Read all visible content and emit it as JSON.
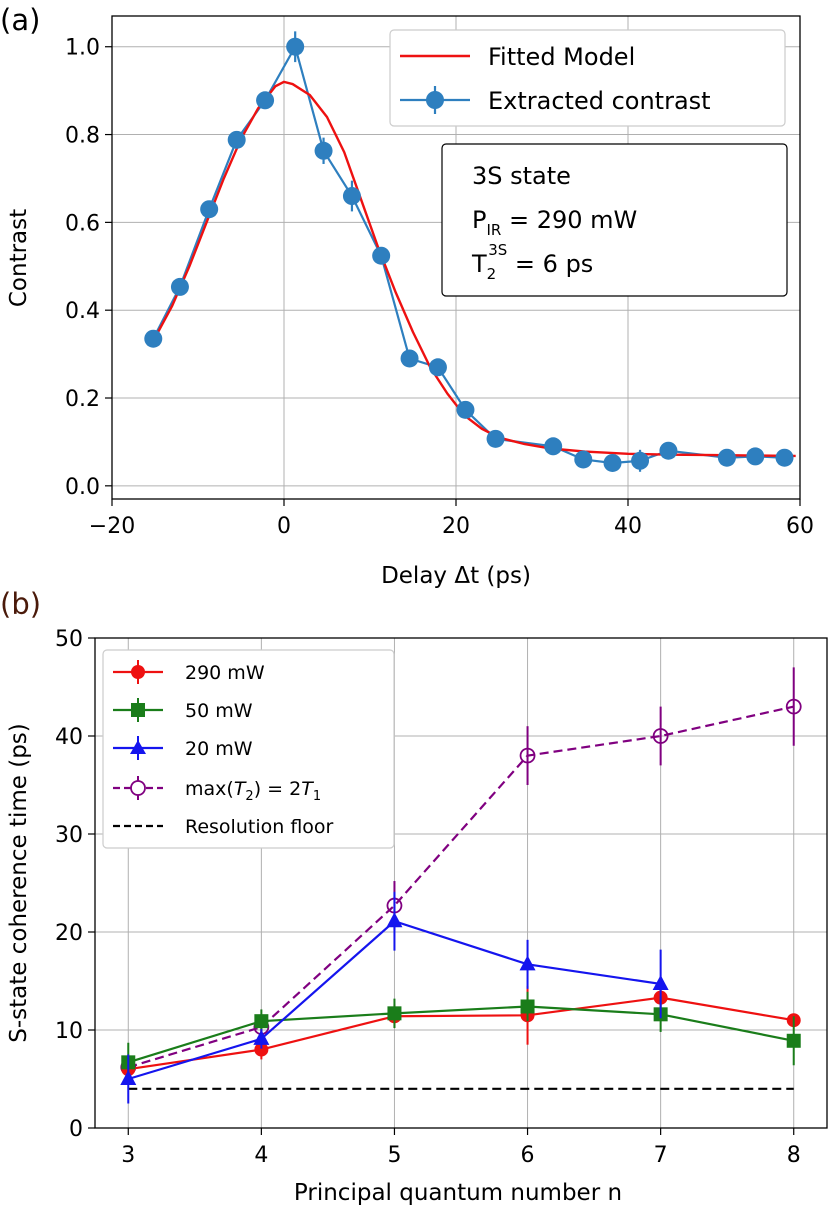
{
  "chart_data": [
    {
      "type": "line",
      "panel_label": "(a)",
      "xlabel": "Delay Δt (ps)",
      "ylabel": "Contrast",
      "xlim": [
        -20,
        60
      ],
      "ylim": [
        -0.03,
        1.07
      ],
      "xticks": [
        -20,
        0,
        20,
        40,
        60
      ],
      "xtick_labels": [
        "−20",
        "0",
        "20",
        "40",
        "60"
      ],
      "yticks": [
        0.0,
        0.2,
        0.4,
        0.6,
        0.8,
        1.0
      ],
      "ytick_labels": [
        "0.0",
        "0.2",
        "0.4",
        "0.6",
        "0.8",
        "1.0"
      ],
      "grid": true,
      "legend_position": "top-right",
      "series": [
        {
          "name": "Fitted Model",
          "style": "line",
          "color": "#ee1111",
          "x": [
            -15.2,
            -13,
            -11,
            -9,
            -7,
            -5,
            -3,
            -1,
            0,
            1,
            3,
            5,
            7,
            9,
            11,
            13,
            15,
            17,
            19,
            21,
            23,
            25,
            28,
            31,
            35,
            40,
            45,
            50,
            55,
            59.5
          ],
          "y": [
            0.33,
            0.41,
            0.5,
            0.6,
            0.7,
            0.79,
            0.86,
            0.91,
            0.92,
            0.915,
            0.89,
            0.84,
            0.76,
            0.65,
            0.54,
            0.44,
            0.35,
            0.27,
            0.21,
            0.16,
            0.13,
            0.11,
            0.095,
            0.085,
            0.078,
            0.073,
            0.071,
            0.07,
            0.069,
            0.068
          ]
        },
        {
          "name": "Extracted contrast",
          "style": "line-marker",
          "color": "#2e7fbf",
          "x": [
            -15.2,
            -12.1,
            -8.7,
            -5.5,
            -2.2,
            1.3,
            4.6,
            7.9,
            11.3,
            14.6,
            17.9,
            21.1,
            24.6,
            31.3,
            34.8,
            38.2,
            41.4,
            44.7,
            51.5,
            54.8,
            58.2
          ],
          "y": [
            0.335,
            0.453,
            0.63,
            0.788,
            0.878,
            1.0,
            0.763,
            0.66,
            0.524,
            0.29,
            0.27,
            0.173,
            0.107,
            0.09,
            0.06,
            0.052,
            0.057,
            0.08,
            0.064,
            0.067,
            0.064
          ],
          "yerr": [
            0.012,
            0.012,
            0.012,
            0.02,
            0.02,
            0.035,
            0.03,
            0.035,
            0.012,
            0.012,
            0.012,
            0.012,
            0.012,
            0.02,
            0.015,
            0.015,
            0.025,
            0.012,
            0.015,
            0.015,
            0.012
          ]
        }
      ],
      "annotation": {
        "line1": "3S state",
        "line2_main": "P",
        "line2_sub": "IR",
        "line2_rest": " = 290 mW",
        "line3_main": "T",
        "line3_sub": "2",
        "line3_sup": "3S",
        "line3_rest": " = 6 ps"
      }
    },
    {
      "type": "line",
      "panel_label": "(b)",
      "xlabel": "Principal quantum number n",
      "ylabel": "S-state coherence time (ps)",
      "xlim": [
        2.75,
        8.25
      ],
      "ylim": [
        0,
        50
      ],
      "xticks": [
        3,
        4,
        5,
        6,
        7,
        8
      ],
      "xtick_labels": [
        "3",
        "4",
        "5",
        "6",
        "7",
        "8"
      ],
      "yticks": [
        0,
        10,
        20,
        30,
        40,
        50
      ],
      "ytick_labels": [
        "0",
        "10",
        "20",
        "30",
        "40",
        "50"
      ],
      "grid": true,
      "legend_position": "top-left",
      "series": [
        {
          "name": "290 mW",
          "style": "circle",
          "color": "#ee1111",
          "x": [
            3,
            4,
            5,
            6,
            7,
            8
          ],
          "y": [
            6.0,
            8.0,
            11.4,
            11.5,
            13.3,
            11.0
          ],
          "yerr": [
            1.0,
            1.0,
            1.2,
            3.0,
            1.0,
            0.5
          ]
        },
        {
          "name": "50 mW",
          "style": "square",
          "color": "#1a7d1a",
          "x": [
            3,
            4,
            5,
            6,
            7,
            8
          ],
          "y": [
            6.7,
            10.9,
            11.7,
            12.4,
            11.6,
            8.9
          ],
          "yerr": [
            2.0,
            1.2,
            1.5,
            1.5,
            1.8,
            2.5
          ]
        },
        {
          "name": "20 mW",
          "style": "triangle",
          "color": "#1515ee",
          "x": [
            3,
            4,
            5,
            6,
            7
          ],
          "y": [
            5.0,
            9.1,
            21.1,
            16.7,
            14.7
          ],
          "yerr": [
            2.5,
            1.0,
            3.0,
            2.5,
            3.5
          ]
        },
        {
          "name": "max(T2) = 2T1",
          "style": "open-circle-dashed",
          "color": "#800080",
          "x": [
            3,
            4,
            5,
            6,
            7,
            8
          ],
          "y": [
            6.2,
            10.3,
            22.7,
            38.0,
            40.0,
            43.0
          ],
          "yerr": [
            0.5,
            1.0,
            2.5,
            3.0,
            3.0,
            4.0
          ]
        },
        {
          "name": "Resolution floor",
          "style": "dashed",
          "color": "#000000",
          "x": [
            3,
            8
          ],
          "y": [
            4.0,
            4.0
          ]
        }
      ],
      "legend": {
        "s1": "290 mW",
        "s2": "50 mW",
        "s3": "20 mW",
        "s4_pre": "max(",
        "s4_T": "T",
        "s4_sub2": "2",
        "s4_mid": ") = 2",
        "s4_T1": "T",
        "s4_sub1": "1",
        "s5": "Resolution floor"
      }
    }
  ]
}
